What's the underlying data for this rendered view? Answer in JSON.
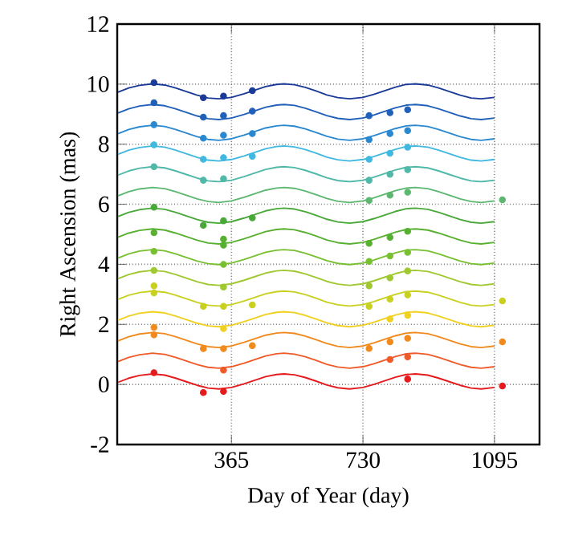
{
  "chart_data": {
    "type": "line",
    "xlabel": "Day of Year (day)",
    "ylabel": "Right Ascension (mas)",
    "xlim": [
      48,
      1220
    ],
    "ylim": [
      -2,
      12
    ],
    "xticks": [
      365,
      730,
      1095
    ],
    "yticks": [
      -2,
      0,
      2,
      4,
      6,
      8,
      10,
      12
    ],
    "grid": true,
    "line_style": "solid",
    "x": [
      50,
      80,
      110,
      146,
      180,
      210,
      240,
      270,
      300,
      330,
      365,
      400,
      430,
      460,
      490,
      511,
      540,
      570,
      600,
      630,
      660,
      693,
      730,
      760,
      790,
      820,
      850,
      876,
      910,
      940,
      970,
      1000,
      1030,
      1058,
      1095
    ],
    "series": [
      {
        "color": "#e41a1c",
        "values": [
          0.07,
          0.21,
          0.3,
          0.35,
          0.31,
          0.21,
          0.09,
          -0.03,
          -0.12,
          -0.15,
          -0.1,
          0.02,
          0.14,
          0.26,
          0.33,
          0.35,
          0.32,
          0.23,
          0.11,
          -0.02,
          -0.11,
          -0.15,
          -0.1,
          0.0,
          0.12,
          0.24,
          0.33,
          0.35,
          0.31,
          0.21,
          0.09,
          -0.03,
          -0.12,
          -0.15,
          -0.1
        ]
      },
      {
        "color": "#f05a28",
        "values": [
          0.76,
          0.9,
          0.99,
          1.04,
          1.0,
          0.9,
          0.78,
          0.66,
          0.57,
          0.54,
          0.59,
          0.71,
          0.83,
          0.95,
          1.02,
          1.04,
          1.01,
          0.92,
          0.8,
          0.67,
          0.58,
          0.54,
          0.59,
          0.69,
          0.81,
          0.93,
          1.02,
          1.04,
          1.0,
          0.9,
          0.78,
          0.66,
          0.57,
          0.54,
          0.59
        ]
      },
      {
        "color": "#f08a1c",
        "values": [
          1.45,
          1.59,
          1.68,
          1.73,
          1.69,
          1.59,
          1.47,
          1.35,
          1.26,
          1.23,
          1.28,
          1.4,
          1.52,
          1.64,
          1.71,
          1.73,
          1.7,
          1.61,
          1.49,
          1.36,
          1.27,
          1.23,
          1.28,
          1.38,
          1.5,
          1.62,
          1.71,
          1.73,
          1.69,
          1.59,
          1.47,
          1.35,
          1.26,
          1.23,
          1.28
        ]
      },
      {
        "color": "#f0d020",
        "values": [
          2.14,
          2.28,
          2.37,
          2.42,
          2.38,
          2.28,
          2.16,
          2.04,
          1.95,
          1.92,
          1.97,
          2.09,
          2.21,
          2.33,
          2.4,
          2.42,
          2.39,
          2.3,
          2.18,
          2.05,
          1.96,
          1.92,
          1.97,
          2.07,
          2.19,
          2.31,
          2.4,
          2.42,
          2.38,
          2.28,
          2.16,
          2.04,
          1.95,
          1.92,
          1.97
        ]
      },
      {
        "color": "#c8d020",
        "values": [
          2.83,
          2.97,
          3.06,
          3.11,
          3.07,
          2.97,
          2.85,
          2.73,
          2.64,
          2.61,
          2.66,
          2.78,
          2.9,
          3.02,
          3.09,
          3.11,
          3.08,
          2.99,
          2.87,
          2.74,
          2.65,
          2.61,
          2.66,
          2.76,
          2.88,
          3.0,
          3.09,
          3.11,
          3.07,
          2.97,
          2.85,
          2.73,
          2.64,
          2.61,
          2.66
        ]
      },
      {
        "color": "#a0c830",
        "values": [
          3.52,
          3.66,
          3.75,
          3.8,
          3.76,
          3.66,
          3.54,
          3.42,
          3.33,
          3.3,
          3.35,
          3.47,
          3.59,
          3.71,
          3.78,
          3.8,
          3.77,
          3.68,
          3.56,
          3.43,
          3.34,
          3.3,
          3.35,
          3.45,
          3.57,
          3.69,
          3.78,
          3.8,
          3.76,
          3.66,
          3.54,
          3.42,
          3.33,
          3.3,
          3.35
        ]
      },
      {
        "color": "#78c030",
        "values": [
          4.21,
          4.35,
          4.44,
          4.49,
          4.45,
          4.35,
          4.23,
          4.11,
          4.02,
          3.99,
          4.04,
          4.16,
          4.28,
          4.4,
          4.47,
          4.49,
          4.46,
          4.37,
          4.25,
          4.12,
          4.03,
          3.99,
          4.04,
          4.14,
          4.26,
          4.38,
          4.47,
          4.49,
          4.45,
          4.35,
          4.23,
          4.11,
          4.02,
          3.99,
          4.04
        ]
      },
      {
        "color": "#58b030",
        "values": [
          4.9,
          5.04,
          5.13,
          5.18,
          5.14,
          5.04,
          4.92,
          4.8,
          4.71,
          4.68,
          4.73,
          4.85,
          4.97,
          5.09,
          5.16,
          5.18,
          5.15,
          5.06,
          4.94,
          4.81,
          4.72,
          4.68,
          4.73,
          4.83,
          4.95,
          5.07,
          5.16,
          5.18,
          5.14,
          5.04,
          4.92,
          4.8,
          4.71,
          4.68,
          4.73
        ]
      },
      {
        "color": "#48a838",
        "values": [
          5.59,
          5.73,
          5.82,
          5.87,
          5.83,
          5.73,
          5.61,
          5.49,
          5.4,
          5.37,
          5.42,
          5.54,
          5.66,
          5.78,
          5.85,
          5.87,
          5.84,
          5.75,
          5.63,
          5.5,
          5.41,
          5.37,
          5.42,
          5.52,
          5.64,
          5.76,
          5.85,
          5.87,
          5.83,
          5.73,
          5.61,
          5.49,
          5.4,
          5.37,
          5.42
        ]
      },
      {
        "color": "#5cb870",
        "values": [
          6.28,
          6.42,
          6.51,
          6.56,
          6.52,
          6.42,
          6.3,
          6.18,
          6.09,
          6.06,
          6.11,
          6.23,
          6.35,
          6.47,
          6.54,
          6.56,
          6.53,
          6.44,
          6.32,
          6.19,
          6.1,
          6.06,
          6.11,
          6.21,
          6.33,
          6.45,
          6.54,
          6.56,
          6.52,
          6.42,
          6.3,
          6.18,
          6.09,
          6.06,
          6.11
        ]
      },
      {
        "color": "#50b8a8",
        "values": [
          6.97,
          7.11,
          7.2,
          7.25,
          7.21,
          7.11,
          6.99,
          6.87,
          6.78,
          6.75,
          6.8,
          6.92,
          7.04,
          7.16,
          7.23,
          7.25,
          7.22,
          7.13,
          7.01,
          6.88,
          6.79,
          6.75,
          6.8,
          6.9,
          7.02,
          7.14,
          7.23,
          7.25,
          7.21,
          7.11,
          6.99,
          6.87,
          6.78,
          6.75,
          6.8
        ]
      },
      {
        "color": "#40b8e0",
        "values": [
          7.66,
          7.8,
          7.89,
          7.94,
          7.9,
          7.8,
          7.68,
          7.56,
          7.47,
          7.44,
          7.49,
          7.61,
          7.73,
          7.85,
          7.92,
          7.94,
          7.91,
          7.82,
          7.7,
          7.57,
          7.48,
          7.44,
          7.49,
          7.59,
          7.71,
          7.83,
          7.92,
          7.94,
          7.9,
          7.8,
          7.68,
          7.56,
          7.47,
          7.44,
          7.49
        ]
      },
      {
        "color": "#2a88d0",
        "values": [
          8.35,
          8.49,
          8.58,
          8.63,
          8.59,
          8.49,
          8.37,
          8.25,
          8.16,
          8.13,
          8.18,
          8.3,
          8.42,
          8.54,
          8.61,
          8.63,
          8.6,
          8.51,
          8.39,
          8.26,
          8.17,
          8.13,
          8.18,
          8.28,
          8.4,
          8.52,
          8.61,
          8.63,
          8.59,
          8.49,
          8.37,
          8.25,
          8.16,
          8.13,
          8.18
        ]
      },
      {
        "color": "#2060b8",
        "values": [
          9.04,
          9.18,
          9.27,
          9.32,
          9.28,
          9.18,
          9.06,
          8.94,
          8.85,
          8.82,
          8.87,
          8.99,
          9.11,
          9.23,
          9.3,
          9.32,
          9.29,
          9.2,
          9.08,
          8.95,
          8.86,
          8.82,
          8.87,
          8.97,
          9.09,
          9.21,
          9.3,
          9.32,
          9.28,
          9.18,
          9.06,
          8.94,
          8.85,
          8.82,
          8.87
        ]
      },
      {
        "color": "#1a3a98",
        "values": [
          9.73,
          9.87,
          9.96,
          10.01,
          9.97,
          9.87,
          9.75,
          9.63,
          9.54,
          9.51,
          9.56,
          9.68,
          9.8,
          9.92,
          9.99,
          10.01,
          9.98,
          9.89,
          9.77,
          9.64,
          9.55,
          9.51,
          9.56,
          9.66,
          9.78,
          9.9,
          9.99,
          10.01,
          9.97,
          9.87,
          9.75,
          9.63,
          9.54,
          9.51,
          9.56
        ]
      },
      {
        "type": "scatter",
        "marker": "circle",
        "color": "#e41a1c",
        "x": [
          150,
          287,
          343,
          854,
          1117
        ],
        "values": [
          0.39,
          -0.27,
          -0.23,
          0.18,
          -0.05
        ]
      },
      {
        "type": "scatter",
        "marker": "circle",
        "color": "#f05a28",
        "x": [
          343,
          805,
          854
        ],
        "values": [
          0.48,
          0.83,
          0.92
        ]
      },
      {
        "type": "scatter",
        "marker": "circle",
        "color": "#f08a1c",
        "x": [
          150,
          150,
          287,
          343,
          423,
          747,
          805,
          854,
          1117
        ],
        "values": [
          1.9,
          1.65,
          1.19,
          1.19,
          1.29,
          1.2,
          1.42,
          1.54,
          1.42
        ]
      },
      {
        "type": "scatter",
        "marker": "circle",
        "color": "#f0d020",
        "x": [
          343,
          805,
          854
        ],
        "values": [
          1.86,
          2.18,
          2.3
        ]
      },
      {
        "type": "scatter",
        "marker": "circle",
        "color": "#c8d020",
        "x": [
          150,
          150,
          287,
          343,
          423,
          747,
          805,
          854,
          1117
        ],
        "values": [
          3.28,
          3.05,
          2.6,
          2.6,
          2.65,
          2.6,
          2.84,
          2.98,
          2.78
        ]
      },
      {
        "type": "scatter",
        "marker": "circle",
        "color": "#a0c830",
        "x": [
          150,
          343,
          747,
          805,
          854
        ],
        "values": [
          3.8,
          3.24,
          3.28,
          3.55,
          3.78
        ]
      },
      {
        "type": "scatter",
        "marker": "circle",
        "color": "#78c030",
        "x": [
          150,
          343,
          747,
          805,
          854
        ],
        "values": [
          4.43,
          4.0,
          4.1,
          4.28,
          4.4
        ]
      },
      {
        "type": "scatter",
        "marker": "circle",
        "color": "#58b030",
        "x": [
          150,
          343,
          343,
          747,
          805,
          854
        ],
        "values": [
          5.05,
          4.84,
          4.64,
          4.7,
          4.9,
          5.1
        ]
      },
      {
        "type": "scatter",
        "marker": "circle",
        "color": "#48a838",
        "x": [
          150,
          287,
          343,
          423
        ],
        "values": [
          5.9,
          5.3,
          5.45,
          5.55
        ]
      },
      {
        "type": "scatter",
        "marker": "circle",
        "color": "#5cb870",
        "x": [
          747,
          805,
          854,
          1117
        ],
        "values": [
          6.13,
          6.3,
          6.4,
          6.15
        ]
      },
      {
        "type": "scatter",
        "marker": "circle",
        "color": "#50b8a8",
        "x": [
          150,
          287,
          343,
          747,
          805,
          854
        ],
        "values": [
          7.25,
          6.8,
          6.85,
          6.8,
          7.0,
          7.15
        ]
      },
      {
        "type": "scatter",
        "marker": "circle",
        "color": "#40b8e0",
        "x": [
          150,
          287,
          343,
          423,
          747,
          805,
          854
        ],
        "values": [
          7.98,
          7.5,
          7.55,
          7.6,
          7.5,
          7.7,
          7.9
        ]
      },
      {
        "type": "scatter",
        "marker": "circle",
        "color": "#2a88d0",
        "x": [
          150,
          287,
          343,
          423,
          747,
          805,
          854
        ],
        "values": [
          8.65,
          8.2,
          8.3,
          8.35,
          8.15,
          8.35,
          8.45
        ]
      },
      {
        "type": "scatter",
        "marker": "circle",
        "color": "#2060b8",
        "x": [
          150,
          287,
          343,
          423,
          747,
          805,
          854
        ],
        "values": [
          9.38,
          8.9,
          8.95,
          9.1,
          8.95,
          9.05,
          9.15
        ]
      },
      {
        "type": "scatter",
        "marker": "circle",
        "color": "#1a3a98",
        "x": [
          150,
          287,
          343,
          423
        ],
        "values": [
          10.05,
          9.55,
          9.6,
          9.78
        ]
      }
    ]
  }
}
